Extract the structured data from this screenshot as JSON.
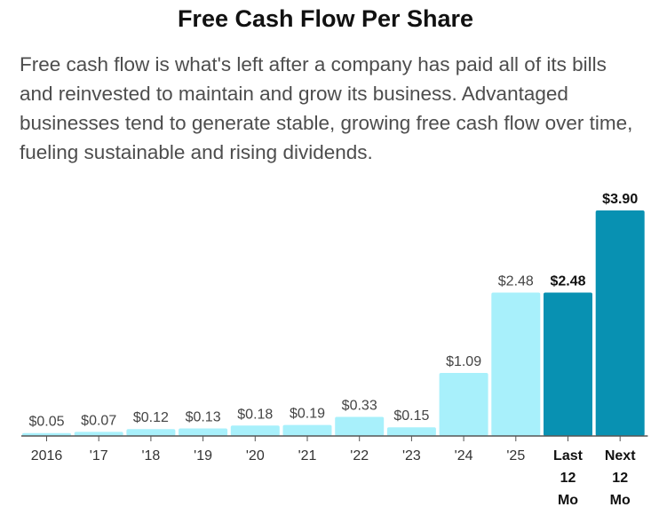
{
  "title": "Free Cash Flow Per Share",
  "description": "Free cash flow is what's left after a company has paid all of its bills and reinvested to maintain and grow its business. Advantaged businesses tend to generate stable, growing free cash flow over time, fueling sustainable and rising dividends.",
  "colors": {
    "historical_bar": "#a8f0fb",
    "highlight_bar": "#0891b2",
    "axis": "#555555"
  },
  "chart_data": {
    "type": "bar",
    "title": "Free Cash Flow Per Share",
    "categories": [
      "2016",
      "'17",
      "'18",
      "'19",
      "'20",
      "'21",
      "'22",
      "'23",
      "'24",
      "'25",
      "Last 12 Mo",
      "Next 12 Mo"
    ],
    "values": [
      0.05,
      0.07,
      0.12,
      0.13,
      0.18,
      0.19,
      0.33,
      0.15,
      1.09,
      2.48,
      2.48,
      3.9
    ],
    "value_labels": [
      "$0.05",
      "$0.07",
      "$0.12",
      "$0.13",
      "$0.18",
      "$0.19",
      "$0.33",
      "$0.15",
      "$1.09",
      "$2.48",
      "$2.48",
      "$3.90"
    ],
    "highlighted": [
      false,
      false,
      false,
      false,
      false,
      false,
      false,
      false,
      false,
      false,
      true,
      true
    ],
    "xlabel": "",
    "ylabel": "",
    "ylim": [
      0,
      3.9
    ],
    "grid": false,
    "legend": "none"
  }
}
